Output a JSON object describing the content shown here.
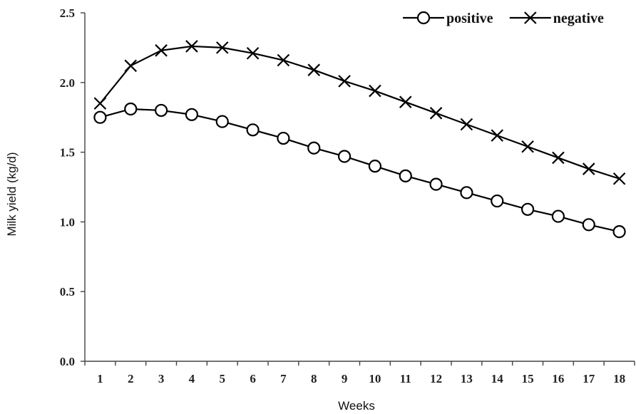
{
  "chart_data": {
    "type": "line",
    "title": "",
    "xlabel": "Weeks",
    "ylabel": "Milk yield (kg/d)",
    "categories": [
      "1",
      "2",
      "3",
      "4",
      "5",
      "6",
      "7",
      "8",
      "9",
      "10",
      "11",
      "12",
      "13",
      "14",
      "15",
      "16",
      "17",
      "18"
    ],
    "ylim": [
      0.0,
      2.5
    ],
    "yticks": [
      "0.0",
      "0.5",
      "1.0",
      "1.5",
      "2.0",
      "2.5"
    ],
    "grid": false,
    "legend_position": "top-right",
    "series": [
      {
        "name": "positive",
        "marker": "circle",
        "values": [
          1.75,
          1.81,
          1.8,
          1.77,
          1.72,
          1.66,
          1.6,
          1.53,
          1.47,
          1.4,
          1.33,
          1.27,
          1.21,
          1.15,
          1.09,
          1.04,
          0.98,
          0.93
        ]
      },
      {
        "name": "negative",
        "marker": "cross",
        "values": [
          1.85,
          2.12,
          2.23,
          2.26,
          2.25,
          2.21,
          2.16,
          2.09,
          2.01,
          1.94,
          1.86,
          1.78,
          1.7,
          1.62,
          1.54,
          1.46,
          1.38,
          1.31
        ]
      }
    ],
    "colors": {
      "line": "#000000",
      "marker_fill": "#ffffff"
    }
  }
}
